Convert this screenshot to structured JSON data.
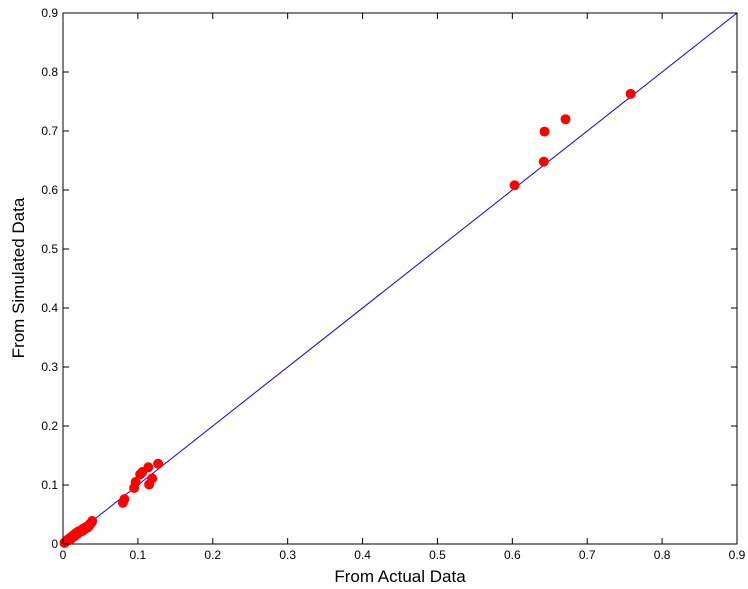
{
  "chart_data": {
    "type": "scatter",
    "title": "",
    "xlabel": "From Actual Data",
    "ylabel": "From Simulated Data",
    "xlim": [
      0,
      0.9
    ],
    "ylim": [
      0,
      0.9
    ],
    "xticks": [
      "0",
      "0.1",
      "0.2",
      "0.3",
      "0.4",
      "0.5",
      "0.6",
      "0.7",
      "0.8",
      "0.9"
    ],
    "yticks": [
      "0",
      "0.1",
      "0.2",
      "0.3",
      "0.4",
      "0.5",
      "0.6",
      "0.7",
      "0.8",
      "0.9"
    ],
    "grid": false,
    "reference_line": {
      "from": [
        0,
        0
      ],
      "to": [
        0.9,
        0.9
      ],
      "color": "#0000ff"
    },
    "marker_color": "#ff0000",
    "points": [
      [
        0.002,
        0.002
      ],
      [
        0.004,
        0.004
      ],
      [
        0.005,
        0.006
      ],
      [
        0.007,
        0.006
      ],
      [
        0.008,
        0.009
      ],
      [
        0.01,
        0.008
      ],
      [
        0.011,
        0.012
      ],
      [
        0.013,
        0.011
      ],
      [
        0.014,
        0.015
      ],
      [
        0.016,
        0.014
      ],
      [
        0.017,
        0.018
      ],
      [
        0.019,
        0.017
      ],
      [
        0.02,
        0.021
      ],
      [
        0.022,
        0.02
      ],
      [
        0.024,
        0.023
      ],
      [
        0.026,
        0.022
      ],
      [
        0.027,
        0.026
      ],
      [
        0.029,
        0.025
      ],
      [
        0.031,
        0.029
      ],
      [
        0.033,
        0.028
      ],
      [
        0.035,
        0.031
      ],
      [
        0.036,
        0.034
      ],
      [
        0.038,
        0.036
      ],
      [
        0.039,
        0.039
      ],
      [
        0.08,
        0.07
      ],
      [
        0.082,
        0.076
      ],
      [
        0.095,
        0.095
      ],
      [
        0.097,
        0.105
      ],
      [
        0.103,
        0.118
      ],
      [
        0.106,
        0.122
      ],
      [
        0.114,
        0.13
      ],
      [
        0.115,
        0.101
      ],
      [
        0.119,
        0.111
      ],
      [
        0.127,
        0.136
      ],
      [
        0.603,
        0.608
      ],
      [
        0.642,
        0.648
      ],
      [
        0.643,
        0.699
      ],
      [
        0.671,
        0.72
      ],
      [
        0.758,
        0.763
      ]
    ]
  }
}
